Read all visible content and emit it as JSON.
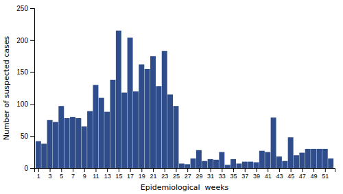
{
  "chart_data": {
    "type": "bar",
    "x": [
      1,
      2,
      3,
      4,
      5,
      6,
      7,
      8,
      9,
      10,
      11,
      12,
      13,
      14,
      15,
      16,
      17,
      18,
      19,
      20,
      21,
      22,
      23,
      24,
      25,
      26,
      27,
      28,
      29,
      30,
      31,
      32,
      33,
      34,
      35,
      36,
      37,
      38,
      39,
      40,
      41,
      42,
      43,
      44,
      45,
      46,
      47,
      48,
      49,
      50,
      51,
      52
    ],
    "values": [
      42,
      38,
      75,
      72,
      97,
      78,
      80,
      78,
      65,
      89,
      130,
      110,
      88,
      138,
      215,
      118,
      204,
      120,
      162,
      155,
      175,
      128,
      183,
      115,
      97,
      7,
      6,
      15,
      28,
      11,
      14,
      13,
      25,
      5,
      14,
      7,
      10,
      10,
      9,
      27,
      25,
      79,
      18,
      11,
      48,
      20,
      24,
      30,
      30,
      30,
      30,
      15
    ],
    "color": "#2e4d8a",
    "xlabel": "Epidemiological  weeks",
    "ylabel": "Number of suspected cases",
    "xlim": [
      0.3,
      52.7
    ],
    "xticks": [
      1,
      3,
      5,
      7,
      9,
      11,
      13,
      15,
      17,
      19,
      21,
      23,
      25,
      27,
      29,
      31,
      33,
      35,
      37,
      39,
      41,
      43,
      45,
      47,
      49,
      51
    ],
    "ylim": [
      0,
      250
    ],
    "yticks": [
      0,
      50,
      100,
      150,
      200,
      250
    ],
    "grid": false
  }
}
